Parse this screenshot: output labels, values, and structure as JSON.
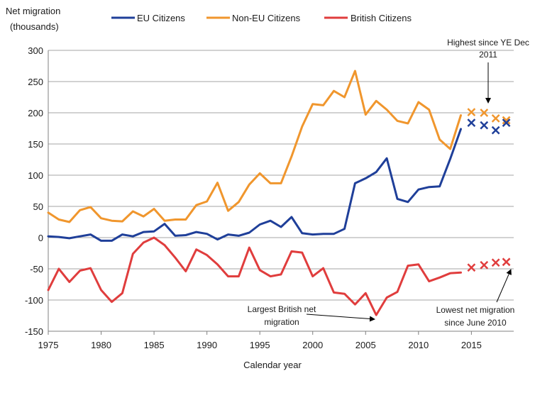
{
  "chart_data": {
    "type": "line",
    "title": "",
    "ylabel_lines": [
      "Net migration",
      "(thousands)"
    ],
    "xlabel": "Calendar year",
    "ylim": [
      -150,
      300
    ],
    "yticks": [
      300,
      250,
      200,
      150,
      100,
      50,
      0,
      -50,
      -100,
      -150
    ],
    "xlim": [
      1975,
      2019
    ],
    "xticks": [
      1975,
      1980,
      1985,
      1990,
      1995,
      2000,
      2005,
      2010,
      2015
    ],
    "grid": "horizontal",
    "legend_position": "top",
    "series": [
      {
        "name": "EU Citizens",
        "color": "#1f3f99",
        "x": [
          1975,
          1976,
          1977,
          1978,
          1979,
          1980,
          1981,
          1982,
          1983,
          1984,
          1985,
          1986,
          1987,
          1988,
          1989,
          1990,
          1991,
          1992,
          1993,
          1994,
          1995,
          1996,
          1997,
          1998,
          1999,
          2000,
          2001,
          2002,
          2003,
          2004,
          2005,
          2006,
          2007,
          2008,
          2009,
          2010,
          2011,
          2012,
          2013,
          2014
        ],
        "values": [
          2,
          1,
          -1,
          2,
          5,
          -5,
          -5,
          5,
          2,
          9,
          10,
          22,
          3,
          4,
          9,
          6,
          -3,
          5,
          3,
          8,
          21,
          27,
          17,
          33,
          7,
          5,
          6,
          6,
          14,
          87,
          95,
          105,
          127,
          62,
          57,
          77,
          81,
          82,
          126,
          174
        ]
      },
      {
        "name": "Non-EU Citizens",
        "color": "#f0962d",
        "x": [
          1975,
          1976,
          1977,
          1978,
          1979,
          1980,
          1981,
          1982,
          1983,
          1984,
          1985,
          1986,
          1987,
          1988,
          1989,
          1990,
          1991,
          1992,
          1993,
          1994,
          1995,
          1996,
          1997,
          1998,
          1999,
          2000,
          2001,
          2002,
          2003,
          2004,
          2005,
          2006,
          2007,
          2008,
          2009,
          2010,
          2011,
          2012,
          2013,
          2014
        ],
        "values": [
          40,
          29,
          25,
          44,
          49,
          31,
          27,
          26,
          42,
          34,
          46,
          27,
          29,
          29,
          52,
          58,
          88,
          43,
          57,
          85,
          103,
          87,
          87,
          130,
          178,
          214,
          212,
          235,
          225,
          267,
          197,
          219,
          205,
          187,
          183,
          217,
          205,
          157,
          142,
          196
        ]
      },
      {
        "name": "British Citizens",
        "color": "#e03d3d",
        "x": [
          1975,
          1976,
          1977,
          1978,
          1979,
          1980,
          1981,
          1982,
          1983,
          1984,
          1985,
          1986,
          1987,
          1988,
          1989,
          1990,
          1991,
          1992,
          1993,
          1994,
          1995,
          1996,
          1997,
          1998,
          1999,
          2000,
          2001,
          2002,
          2003,
          2004,
          2005,
          2006,
          2007,
          2008,
          2009,
          2010,
          2011,
          2012,
          2013,
          2014
        ],
        "values": [
          -84,
          -50,
          -71,
          -53,
          -49,
          -84,
          -103,
          -89,
          -26,
          -8,
          0,
          -12,
          -32,
          -54,
          -19,
          -28,
          -43,
          -62,
          -62,
          -16,
          -52,
          -62,
          -59,
          -22,
          -24,
          -62,
          -49,
          -88,
          -90,
          -107,
          -89,
          -124,
          -96,
          -87,
          -45,
          -43,
          -70,
          -64,
          -57,
          -56
        ]
      }
    ],
    "markers": [
      {
        "series": "Non-EU Citizens",
        "color": "#f0962d",
        "x": [
          2015.0,
          2016.2,
          2017.3,
          2018.3
        ],
        "values": [
          201,
          200,
          191,
          188
        ]
      },
      {
        "series": "EU Citizens",
        "color": "#1f3f99",
        "x": [
          2015.0,
          2016.2,
          2017.3,
          2018.3
        ],
        "values": [
          184,
          180,
          172,
          184
        ]
      },
      {
        "series": "British Citizens",
        "color": "#e03d3d",
        "x": [
          2015.0,
          2016.2,
          2017.3,
          2018.3
        ],
        "values": [
          -48,
          -44,
          -40,
          -39
        ]
      }
    ],
    "annotations": [
      {
        "id": "highest",
        "lines": [
          "Highest since YE Dec",
          "2011"
        ]
      },
      {
        "id": "largest-british",
        "lines": [
          "Largest British net",
          "migration"
        ]
      },
      {
        "id": "lowest",
        "lines": [
          "Lowest net migration",
          "since June 2010"
        ]
      }
    ]
  }
}
